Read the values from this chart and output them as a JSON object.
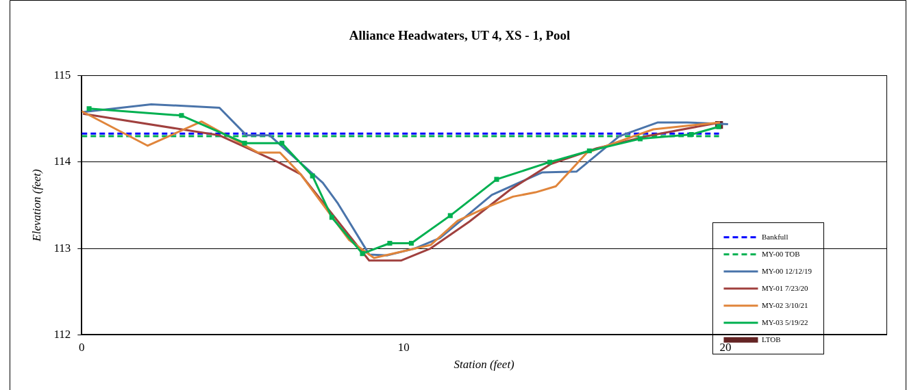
{
  "chart_data": {
    "type": "line",
    "title": "Alliance Headwaters, UT 4, XS - 1, Pool",
    "xlabel": "Station (feet)",
    "ylabel": "Elevation (feet)",
    "xlim": [
      0,
      25
    ],
    "xticks": [
      0,
      10,
      20
    ],
    "ylim": [
      112,
      115
    ],
    "yticks": [
      112,
      113,
      114,
      115
    ],
    "grid": "y",
    "legend": "bottom right",
    "marker": "none",
    "series": [
      {
        "name": "Bankfull",
        "color": "#0000ff",
        "line_style": "dashed",
        "x": [
          0,
          19.8
        ],
        "values": [
          114.33,
          114.33
        ]
      },
      {
        "name": "MY-00 TOB",
        "color": "#00b050",
        "line_style": "dashed",
        "x": [
          0,
          19.8
        ],
        "values": [
          114.3,
          114.3
        ]
      },
      {
        "name": "MY-00 12/12/19",
        "color": "#4a74aa",
        "x": [
          0.04,
          2.16,
          4.28,
          5.12,
          5.84,
          7.49,
          7.96,
          8.93,
          9.5,
          10.35,
          11.13,
          12.74,
          14.3,
          15.37,
          16.7,
          17.9,
          18.8,
          20.08
        ],
        "values": [
          114.58,
          114.67,
          114.63,
          114.31,
          114.31,
          113.76,
          113.52,
          112.93,
          112.92,
          113.0,
          113.12,
          113.62,
          113.88,
          113.89,
          114.3,
          114.46,
          114.46,
          114.44
        ]
      },
      {
        "name": "MY-01 7/23/20",
        "color": "#a0403e",
        "x": [
          0.04,
          4.28,
          6.1,
          6.8,
          8.93,
          9.93,
          10.84,
          12.04,
          13.31,
          14.58,
          16.0,
          17.55,
          19.83
        ],
        "values": [
          114.56,
          114.31,
          114.0,
          113.86,
          112.86,
          112.86,
          113.0,
          113.31,
          113.68,
          113.98,
          114.16,
          114.3,
          114.46
        ]
      },
      {
        "name": "MY-02 3/10/21",
        "color": "#e0853b",
        "x": [
          0,
          2.05,
          3.72,
          5.48,
          6.16,
          6.8,
          8.3,
          9.08,
          10.84,
          11.68,
          12.6,
          13.4,
          14.1,
          14.73,
          15.7,
          17.76,
          19.83
        ],
        "values": [
          114.59,
          114.19,
          114.47,
          114.11,
          114.11,
          113.86,
          113.1,
          112.89,
          113.04,
          113.32,
          113.48,
          113.6,
          113.65,
          113.72,
          114.11,
          114.38,
          114.46
        ]
      },
      {
        "name": "MY-03 5/19/22",
        "color": "#00b050",
        "marker": "square",
        "x": [
          0.23,
          3.1,
          5.06,
          6.22,
          7.17,
          7.77,
          8.72,
          9.57,
          10.24,
          11.45,
          12.89,
          14.54,
          15.77,
          17.35,
          18.94,
          19.79
        ],
        "values": [
          114.62,
          114.54,
          114.22,
          114.22,
          113.84,
          113.36,
          112.94,
          113.06,
          113.06,
          113.38,
          113.8,
          114.0,
          114.13,
          114.27,
          114.32,
          114.41
        ]
      },
      {
        "name": "LTOB",
        "type": "scatter",
        "color": "#642424",
        "marker": "square",
        "x": [
          19.8
        ],
        "values": [
          114.43
        ]
      }
    ]
  }
}
